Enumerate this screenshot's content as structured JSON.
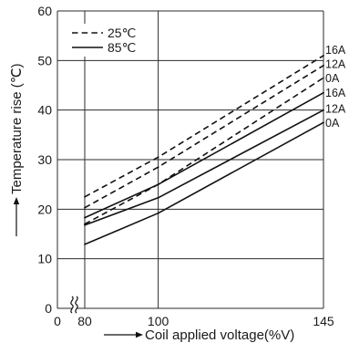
{
  "chart_data": {
    "type": "line",
    "xlabel": "Coil applied voltage(%V)",
    "ylabel": "Temperature rise (℃)",
    "xlim": [
      0,
      145
    ],
    "ylim": [
      0,
      60
    ],
    "x_break": [
      0,
      80
    ],
    "xticks": [
      0,
      80,
      100,
      145
    ],
    "yticks": [
      0,
      10,
      20,
      30,
      40,
      50,
      60
    ],
    "grid": true,
    "legend_position": "top-left",
    "x": [
      80,
      100,
      145
    ],
    "groups": [
      {
        "legend": "25℃",
        "series": [
          {
            "name": "16A",
            "values": [
              22.5,
              30.5,
              51.0
            ]
          },
          {
            "name": "12A",
            "values": [
              20.3,
              28.5,
              49.0
            ]
          },
          {
            "name": "0A",
            "values": [
              17.0,
              25.0,
              46.5
            ]
          }
        ]
      },
      {
        "legend": "85℃",
        "series": [
          {
            "name": "16A",
            "values": [
              18.3,
              25.0,
              43.5
            ]
          },
          {
            "name": "12A",
            "values": [
              16.8,
              22.3,
              40.0
            ]
          },
          {
            "name": "0A",
            "values": [
              12.9,
              19.2,
              37.5
            ]
          }
        ]
      }
    ]
  }
}
